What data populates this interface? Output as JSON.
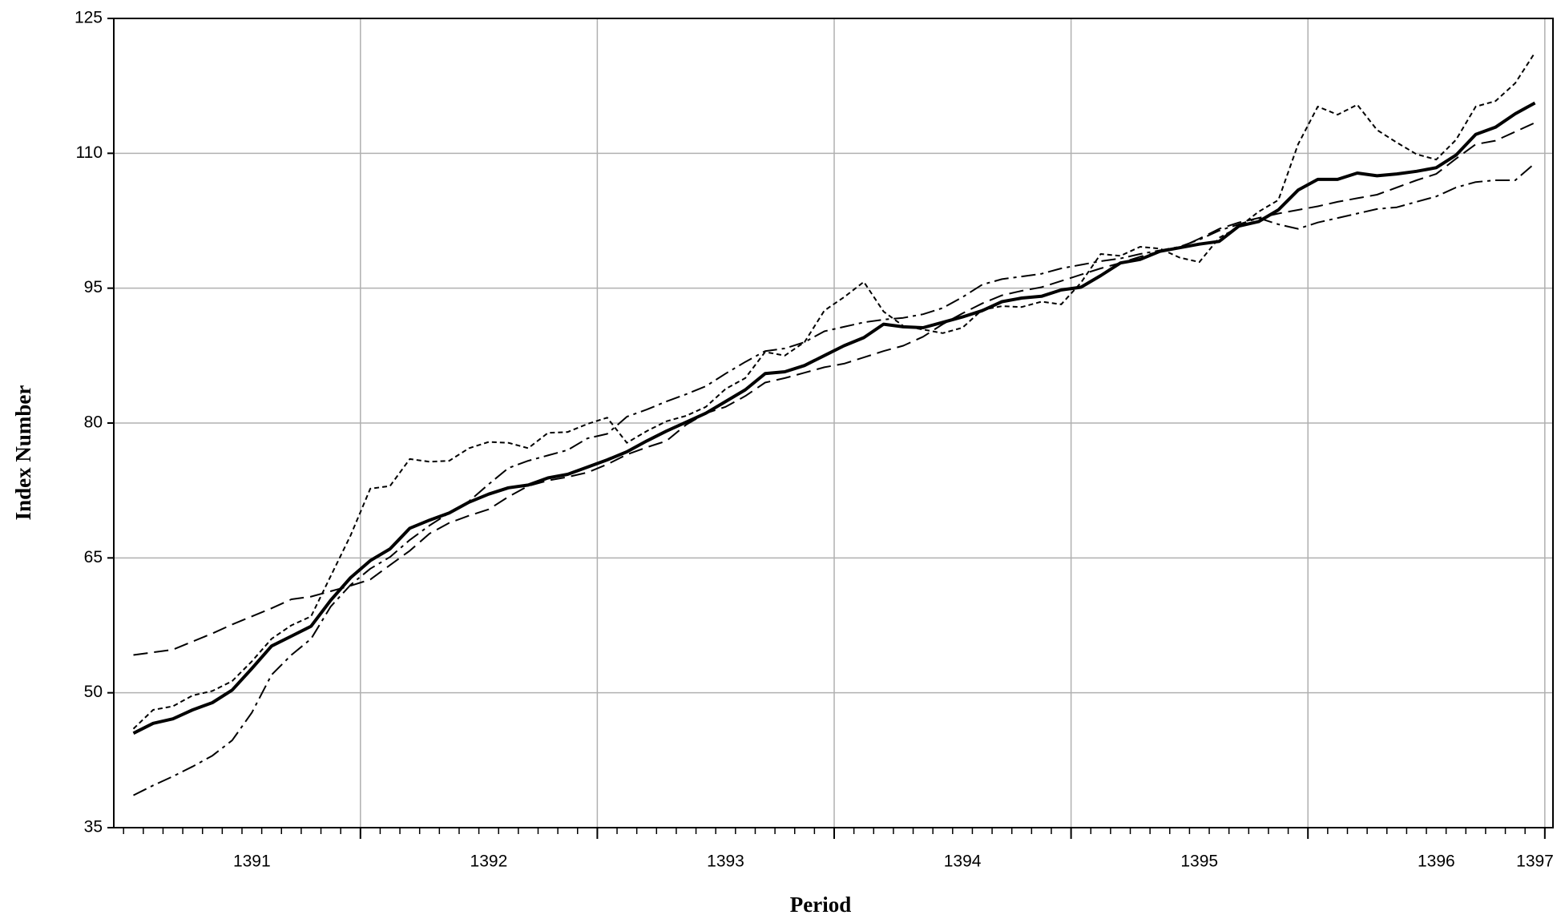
{
  "chart_data": {
    "type": "line",
    "x_label": "Period",
    "y_label": "Index Number",
    "categories": [
      null,
      null,
      null,
      null,
      null,
      null,
      "1391",
      null,
      null,
      null,
      null,
      null,
      null,
      null,
      null,
      null,
      null,
      null,
      "1392",
      null,
      null,
      null,
      null,
      null,
      null,
      null,
      null,
      null,
      null,
      null,
      "1393",
      null,
      null,
      null,
      null,
      null,
      null,
      null,
      null,
      null,
      null,
      null,
      "1394",
      null,
      null,
      null,
      null,
      null,
      null,
      null,
      null,
      null,
      null,
      null,
      "1395",
      null,
      null,
      null,
      null,
      null,
      null,
      null,
      null,
      null,
      null,
      null,
      "1396",
      null,
      null,
      null,
      null,
      "1397"
    ],
    "ylim": [
      35,
      125
    ],
    "yticks": [
      35,
      50,
      65,
      80,
      95,
      110,
      125
    ],
    "grid": true,
    "series": [
      {
        "color": "#000000",
        "style": "solid",
        "width": 4,
        "values": [
          45.5,
          46.6,
          47.1,
          48.1,
          48.9,
          50.3,
          52.7,
          55.2,
          56.3,
          57.4,
          60.3,
          62.8,
          64.7,
          66,
          68.3,
          69.2,
          70,
          71.2,
          72.1,
          72.8,
          73.1,
          73.9,
          74.3,
          75.1,
          75.9,
          76.8,
          78,
          79.1,
          80.1,
          81.1,
          82.4,
          83.7,
          85.5,
          85.7,
          86.4,
          87.5,
          88.6,
          89.5,
          91,
          90.7,
          90.6,
          91.2,
          91.8,
          92.5,
          93.5,
          93.9,
          94.1,
          94.8,
          95.1,
          96.4,
          97.8,
          98.2,
          99.1,
          99.5,
          99.9,
          100.2,
          101.9,
          102.4,
          103.7,
          105.9,
          107.1,
          107.1,
          107.8,
          107.5,
          107.7,
          108,
          108.4,
          109.8,
          112.1,
          112.9,
          114.4,
          115.6
        ]
      },
      {
        "color": "#000000",
        "style": "dotted",
        "width": 2,
        "values": [
          46,
          48.1,
          48.5,
          49.7,
          50.2,
          51.3,
          53.5,
          56,
          57.5,
          58.5,
          63,
          67.5,
          72.7,
          73,
          76,
          75.7,
          75.8,
          77.2,
          77.9,
          77.8,
          77.2,
          78.9,
          79,
          79.9,
          80.6,
          77.8,
          79.1,
          80.2,
          80.8,
          81.8,
          83.8,
          85,
          87.9,
          87.5,
          89,
          92.5,
          94,
          95.7,
          92.4,
          90.8,
          90.4,
          90,
          90.6,
          92.6,
          93,
          92.9,
          93.5,
          93.2,
          95.6,
          98.8,
          98.6,
          99.6,
          99.4,
          98.4,
          97.9,
          100.6,
          101.8,
          103.5,
          104.8,
          111,
          115.2,
          114.3,
          115.4,
          112.6,
          111.2,
          109.9,
          109.3,
          111.5,
          115.2,
          115.8,
          117.8,
          121.2
        ]
      },
      {
        "color": "#000000",
        "style": "dashed",
        "width": 2,
        "values": [
          54.2,
          54.5,
          54.8,
          55.7,
          56.6,
          57.6,
          58.5,
          59.4,
          60.4,
          60.7,
          61.3,
          61.9,
          62.6,
          64.2,
          65.8,
          67.7,
          68.9,
          69.7,
          70.4,
          71.8,
          73,
          73.6,
          74,
          74.5,
          75.4,
          76.5,
          77.3,
          78,
          79.8,
          81.1,
          81.8,
          83,
          84.5,
          85,
          85.6,
          86.2,
          86.6,
          87.3,
          88,
          88.6,
          89.6,
          91,
          92.2,
          93.3,
          94.2,
          94.7,
          95.1,
          95.8,
          96.5,
          97.2,
          97.8,
          98.5,
          99.1,
          99.5,
          100.5,
          101.6,
          102.3,
          102.8,
          103.3,
          103.7,
          104.1,
          104.6,
          105,
          105.4,
          106.2,
          107,
          107.7,
          109.4,
          111,
          111.4,
          112.4,
          113.4
        ]
      },
      {
        "color": "#000000",
        "style": "dashdot",
        "width": 2,
        "values": [
          38.6,
          39.7,
          40.7,
          41.8,
          43,
          44.7,
          47.8,
          52,
          54.2,
          56,
          59.6,
          62,
          63.8,
          65.1,
          67,
          68.6,
          70,
          71.3,
          73.2,
          75,
          75.8,
          76.4,
          77,
          78.3,
          78.8,
          80.7,
          81.5,
          82.4,
          83.2,
          84.1,
          85.5,
          86.8,
          88,
          88.3,
          89,
          90.2,
          90.7,
          91.2,
          91.5,
          91.7,
          92.1,
          92.8,
          94,
          95.4,
          96,
          96.3,
          96.6,
          97.2,
          97.6,
          98,
          98.3,
          98.8,
          99.2,
          99.6,
          100.4,
          101.4,
          102.1,
          102.8,
          102.1,
          101.6,
          102.3,
          102.8,
          103.3,
          103.8,
          104,
          104.6,
          105.2,
          106.2,
          106.8,
          107,
          107,
          108.9
        ]
      }
    ]
  }
}
